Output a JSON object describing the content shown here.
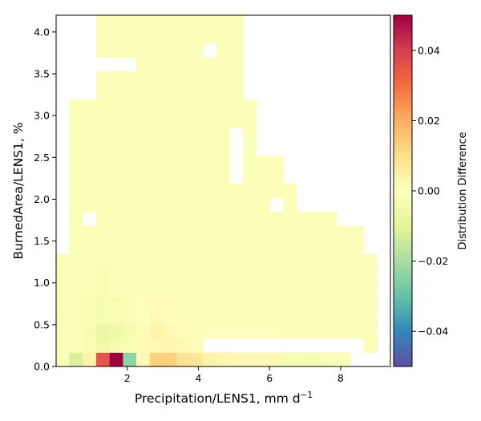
{
  "chart_data": {
    "type": "heatmap",
    "title": "",
    "xlabel_base": "Precipitation/LENS1,  mm d",
    "xlabel_sup": "−1",
    "ylabel": "BurnedArea/LENS1,  %",
    "colorbar_label": "Distribution Difference",
    "xlim": [
      0,
      9.4
    ],
    "ylim": [
      0,
      4.2
    ],
    "x_bin_width": 0.376,
    "y_bin_width": 0.168,
    "n_cols": 25,
    "n_rows": 25,
    "x_ticks": [
      2,
      4,
      6,
      8
    ],
    "x_tick_labels": [
      "2",
      "4",
      "6",
      "8"
    ],
    "y_ticks": [
      0,
      0.5,
      1,
      1.5,
      2,
      2.5,
      3,
      3.5,
      4
    ],
    "y_tick_labels": [
      "0.0",
      "0.5",
      "1.0",
      "1.5",
      "2.0",
      "2.5",
      "3.0",
      "3.5",
      "4.0"
    ],
    "colorbar_ticks": [
      0.04,
      0.02,
      0,
      -0.02,
      -0.04
    ],
    "colorbar_tick_labels": [
      "0.04",
      "0.02",
      "0.00",
      "−0.02",
      "−0.04"
    ],
    "vmin": -0.05,
    "vmax": 0.05,
    "colormap": "Spectral_r",
    "background_color": "#ffffff",
    "extents": [
      [
        0,
        0,
        24
      ],
      [
        1,
        0,
        23
      ],
      [
        2,
        0,
        23
      ],
      [
        3,
        0,
        23
      ],
      [
        4,
        0,
        23
      ],
      [
        5,
        0,
        23
      ],
      [
        6,
        0,
        23
      ],
      [
        7,
        0,
        23
      ],
      [
        8,
        1,
        22
      ],
      [
        9,
        1,
        22
      ],
      [
        10,
        1,
        20
      ],
      [
        11,
        1,
        17
      ],
      [
        12,
        1,
        17
      ],
      [
        13,
        1,
        16
      ],
      [
        14,
        1,
        16
      ],
      [
        15,
        1,
        14
      ],
      [
        16,
        1,
        14
      ],
      [
        17,
        1,
        14
      ],
      [
        18,
        1,
        14
      ],
      [
        19,
        3,
        13
      ],
      [
        20,
        3,
        13
      ],
      [
        21,
        3,
        13
      ],
      [
        22,
        3,
        13
      ],
      [
        23,
        3,
        13
      ],
      [
        24,
        3,
        13
      ]
    ],
    "hole_cells": [
      [
        0,
        22
      ],
      [
        0,
        23
      ],
      [
        0,
        24
      ],
      [
        1,
        11
      ],
      [
        1,
        12
      ],
      [
        1,
        13
      ],
      [
        1,
        14
      ],
      [
        1,
        15
      ],
      [
        1,
        16
      ],
      [
        1,
        17
      ],
      [
        1,
        18
      ],
      [
        1,
        19
      ],
      [
        1,
        20
      ],
      [
        1,
        21
      ],
      [
        1,
        22
      ],
      [
        10,
        2
      ],
      [
        11,
        16
      ],
      [
        11,
        18
      ],
      [
        11,
        21
      ],
      [
        12,
        19
      ],
      [
        12,
        20
      ],
      [
        12,
        21
      ],
      [
        13,
        13
      ],
      [
        14,
        13
      ],
      [
        15,
        13
      ],
      [
        15,
        19
      ],
      [
        15,
        20
      ],
      [
        15,
        21
      ],
      [
        16,
        13
      ],
      [
        16,
        19
      ],
      [
        16,
        20
      ],
      [
        16,
        21
      ],
      [
        17,
        19
      ],
      [
        17,
        20
      ],
      [
        17,
        21
      ],
      [
        18,
        21
      ],
      [
        19,
        19
      ],
      [
        19,
        20
      ],
      [
        19,
        21
      ],
      [
        21,
        1
      ],
      [
        21,
        2
      ],
      [
        21,
        3
      ],
      [
        21,
        4
      ],
      [
        21,
        5
      ],
      [
        22,
        11
      ],
      [
        22,
        15
      ],
      [
        22,
        16
      ]
    ],
    "cells": [
      [
        0,
        1,
        -0.012
      ],
      [
        0,
        2,
        0.004
      ],
      [
        0,
        3,
        0.035
      ],
      [
        0,
        4,
        0.05
      ],
      [
        0,
        5,
        -0.024
      ],
      [
        0,
        6,
        0.002
      ],
      [
        0,
        7,
        0.013
      ],
      [
        0,
        8,
        0.013
      ],
      [
        0,
        9,
        0.009
      ],
      [
        0,
        10,
        0.008
      ],
      [
        0,
        11,
        0.004
      ],
      [
        0,
        12,
        0.003
      ],
      [
        0,
        13,
        0.002
      ],
      [
        0,
        14,
        0.002
      ],
      [
        0,
        15,
        0.002
      ],
      [
        0,
        16,
        0.002
      ],
      [
        0,
        17,
        -0.004
      ],
      [
        0,
        18,
        -0.004
      ],
      [
        0,
        19,
        -0.003
      ],
      [
        0,
        20,
        -0.002
      ],
      [
        0,
        21,
        -0.002
      ],
      [
        1,
        2,
        -0.003
      ],
      [
        1,
        3,
        -0.006
      ],
      [
        1,
        4,
        -0.004
      ],
      [
        1,
        5,
        -0.003
      ],
      [
        1,
        6,
        0.002
      ],
      [
        1,
        7,
        0.002
      ],
      [
        1,
        8,
        0.003
      ],
      [
        1,
        9,
        0.002
      ],
      [
        1,
        10,
        0.001
      ],
      [
        2,
        1,
        -0.002
      ],
      [
        2,
        2,
        -0.004
      ],
      [
        2,
        3,
        -0.007
      ],
      [
        2,
        4,
        -0.006
      ],
      [
        2,
        5,
        -0.004
      ],
      [
        2,
        6,
        -0.002
      ],
      [
        2,
        7,
        0.004
      ],
      [
        2,
        8,
        0.002
      ],
      [
        2,
        9,
        0.001
      ],
      [
        2,
        11,
        -0.001
      ],
      [
        2,
        12,
        -0.001
      ],
      [
        2,
        13,
        -0.001
      ],
      [
        2,
        14,
        -0.001
      ],
      [
        2,
        15,
        -0.001
      ],
      [
        2,
        16,
        -0.001
      ],
      [
        3,
        0,
        -0.002
      ],
      [
        3,
        1,
        -0.002
      ],
      [
        3,
        2,
        -0.003
      ],
      [
        3,
        3,
        -0.004
      ],
      [
        3,
        4,
        -0.003
      ],
      [
        3,
        5,
        -0.002
      ],
      [
        3,
        6,
        -0.001
      ],
      [
        3,
        7,
        0.002
      ],
      [
        3,
        8,
        0.001
      ],
      [
        4,
        1,
        -0.002
      ],
      [
        4,
        2,
        -0.003
      ],
      [
        4,
        3,
        -0.004
      ],
      [
        4,
        4,
        -0.003
      ],
      [
        4,
        5,
        -0.002
      ],
      [
        4,
        6,
        -0.001
      ],
      [
        4,
        7,
        0.001
      ],
      [
        4,
        8,
        0.001
      ],
      [
        5,
        1,
        -0.002
      ],
      [
        5,
        2,
        -0.002
      ],
      [
        5,
        3,
        -0.003
      ],
      [
        5,
        4,
        -0.002
      ],
      [
        5,
        5,
        -0.002
      ],
      [
        5,
        6,
        0.001
      ],
      [
        6,
        2,
        -0.002
      ],
      [
        6,
        3,
        -0.003
      ],
      [
        6,
        4,
        -0.002
      ],
      [
        7,
        2,
        -0.002
      ],
      [
        7,
        3,
        -0.002
      ]
    ]
  }
}
